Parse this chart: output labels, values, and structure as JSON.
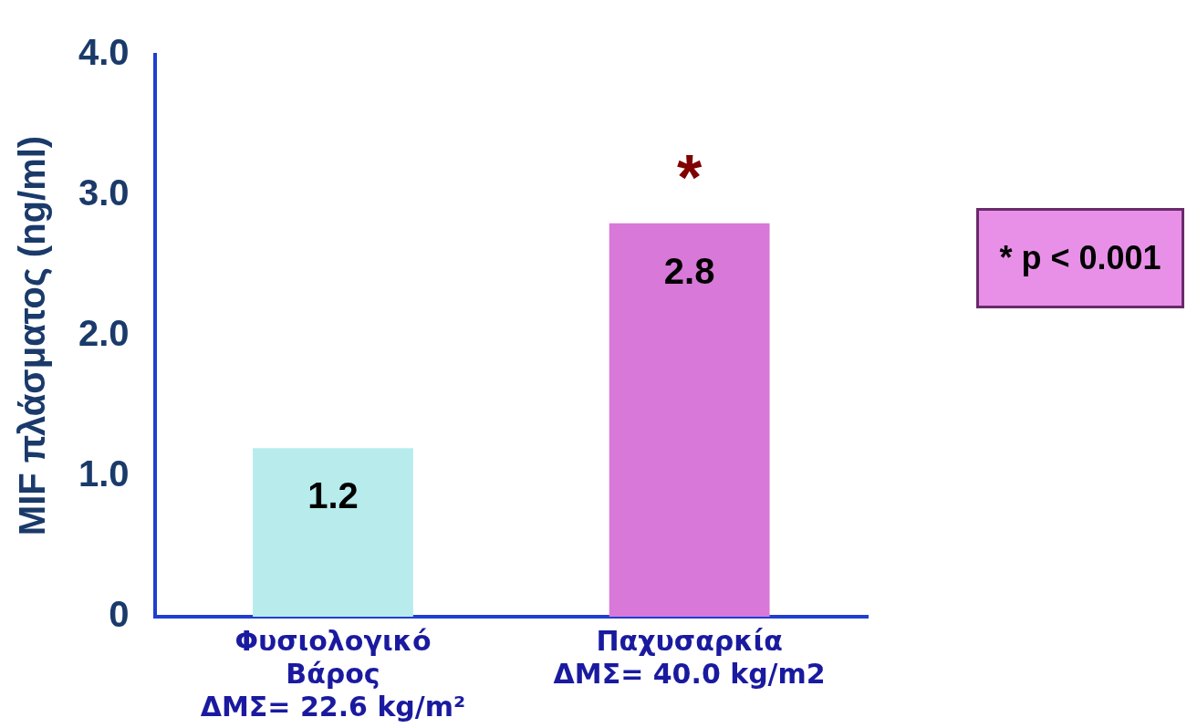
{
  "chart_data": {
    "type": "bar",
    "ylabel": "MIF πλάσματος (ng/ml)",
    "categories": [
      "Φυσιολογικό\nΒάρος\nΔΜΣ= 22.6 kg/m²",
      "Παχυσαρκία\nΔΜΣ= 40.0 kg/m2"
    ],
    "values": [
      1.2,
      2.8
    ],
    "colors": [
      "#b8ecec",
      "#d878d8"
    ],
    "ylim": [
      0,
      4
    ],
    "yticks": [
      0,
      {
        "value": 1,
        "label": "1.0"
      },
      {
        "value": 2,
        "label": "2.0"
      },
      {
        "value": 3,
        "label": "3.0"
      },
      {
        "value": 4,
        "label": "4.0"
      }
    ],
    "data_labels": true,
    "grid": false,
    "legend": false,
    "annotations": [
      "*",
      "* p < 0.001"
    ]
  }
}
